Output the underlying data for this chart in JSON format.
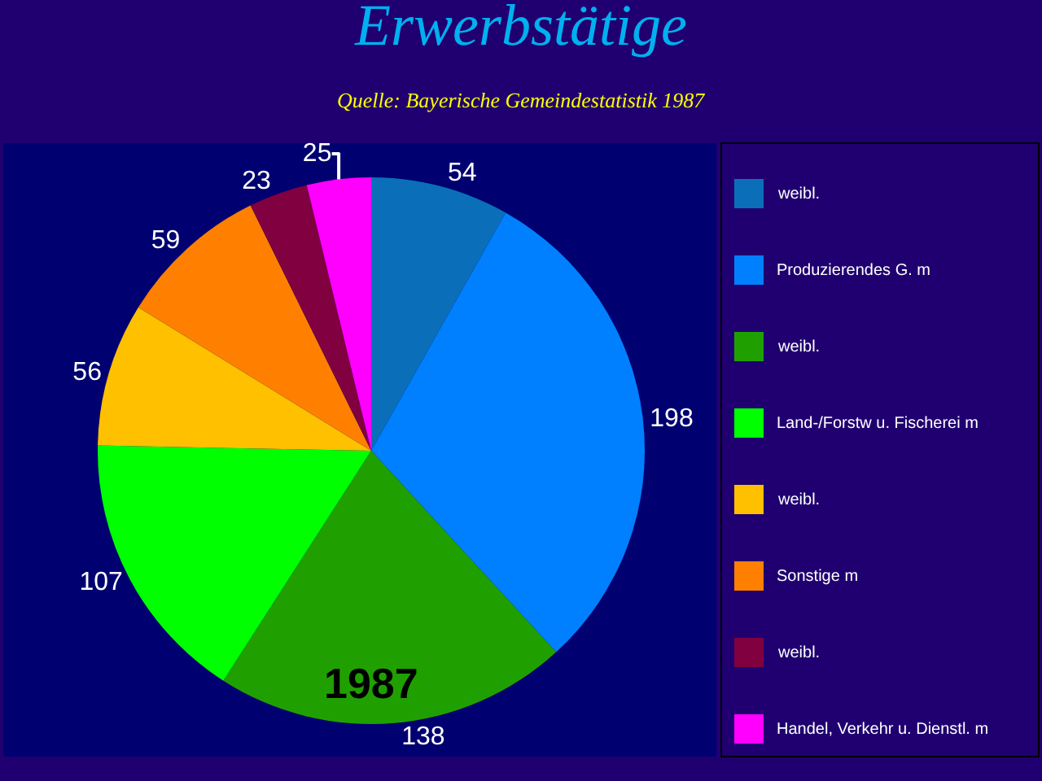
{
  "chart_data": {
    "type": "pie",
    "title": "Erwerbstätige",
    "subtitle": "Quelle: Bayerische Gemeindestatistik 1987",
    "categories": [
      "weibl.",
      "Produzierendes G. m",
      "weibl.",
      "Land-/Forstw u. Fischerei m",
      "weibl.",
      "Sonstige m",
      "weibl.",
      "Handel, Verkehr u. Dienstl. m"
    ],
    "values": [
      54,
      198,
      138,
      107,
      56,
      59,
      23,
      25
    ],
    "colors": [
      "#0a6fb8",
      "#0080ff",
      "#20a000",
      "#00ff00",
      "#ffc000",
      "#ff8000",
      "#800040",
      "#ff00ff"
    ],
    "data_labels": true,
    "legend": "right",
    "annotations": [
      "1987"
    ]
  }
}
